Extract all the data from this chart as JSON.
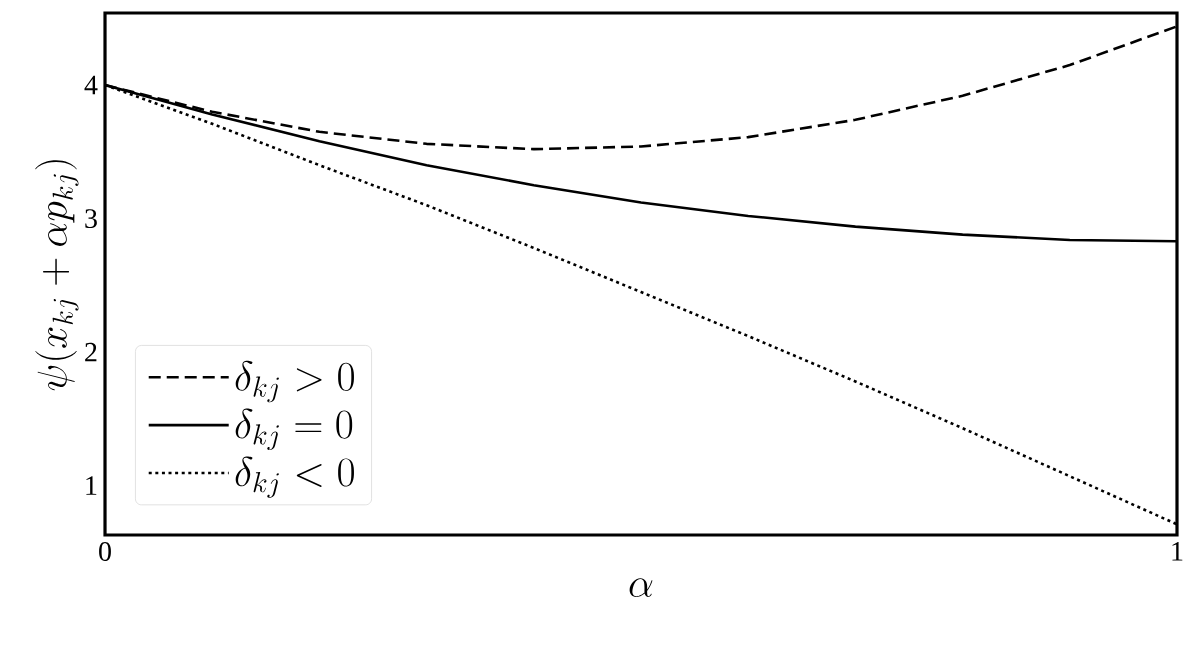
{
  "chart_data": {
    "type": "line",
    "xlabel": "\\alpha",
    "ylabel": "\\psi(x_{kj} + \\alpha p_{kj})",
    "x": [
      0,
      0.1,
      0.2,
      0.3,
      0.4,
      0.5,
      0.6,
      0.7,
      0.8,
      0.9,
      1
    ],
    "series": [
      {
        "name": "\\delta_{kj} > 0",
        "color": "#000000",
        "line_style": "dashed",
        "values": [
          4,
          3.8,
          3.65,
          3.56,
          3.52,
          3.54,
          3.61,
          3.74,
          3.92,
          4.15,
          4.44
        ]
      },
      {
        "name": "\\delta_{kj} = 0",
        "color": "#000000",
        "line_style": "solid",
        "values": [
          4,
          3.78,
          3.58,
          3.4,
          3.25,
          3.12,
          3.02,
          2.94,
          2.88,
          2.84,
          2.83
        ]
      },
      {
        "name": "\\delta_{kj} < 0",
        "color": "#000000",
        "line_style": "dotted",
        "values": [
          4,
          3.71,
          3.4,
          3.1,
          2.78,
          2.45,
          2.12,
          1.78,
          1.43,
          1.07,
          0.71
        ]
      }
    ],
    "xlim": [
      0,
      1
    ],
    "ylim": [
      0.63,
      4.54
    ],
    "xticks": [
      0,
      1
    ],
    "yticks": [
      1,
      2,
      3,
      4
    ],
    "grid": false,
    "legend": "bottom left",
    "marker": "none"
  }
}
